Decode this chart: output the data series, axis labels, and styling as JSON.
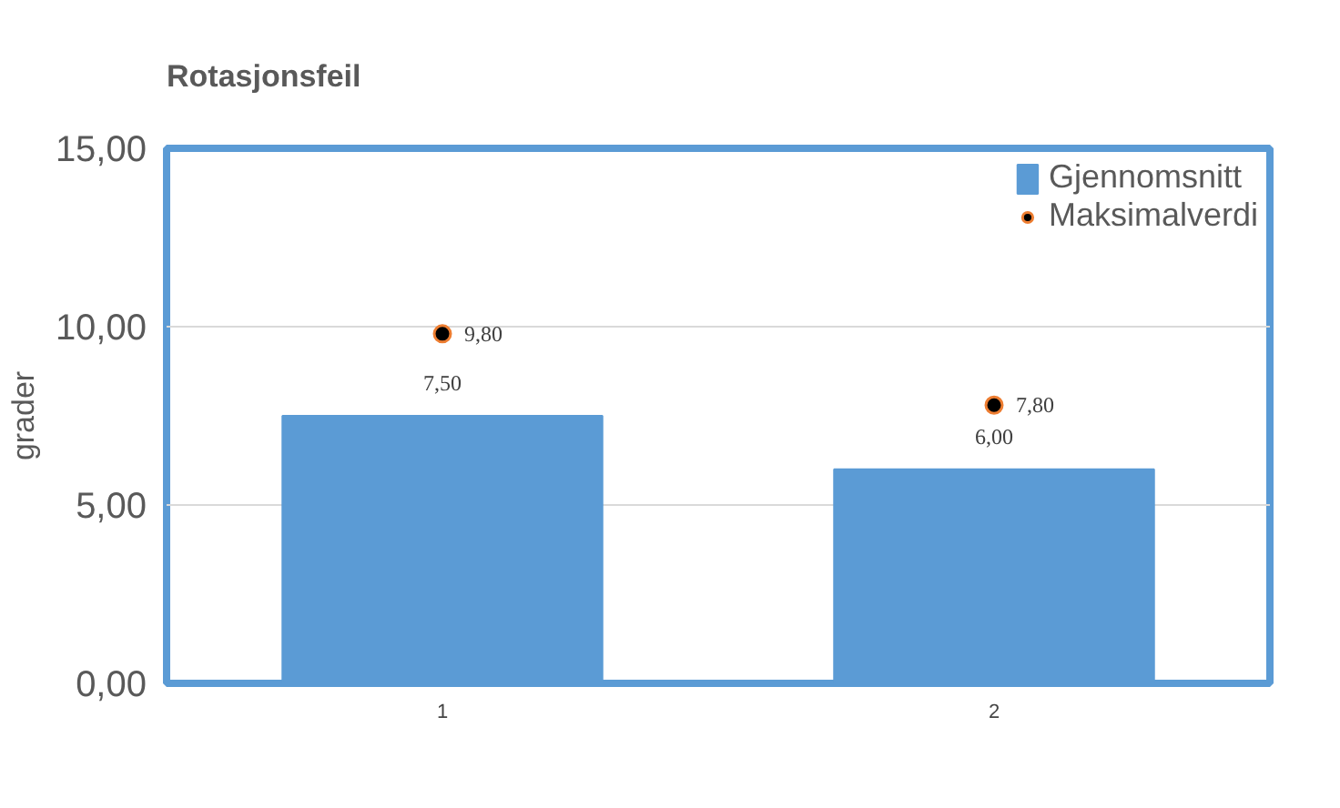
{
  "chart_data": {
    "type": "bar",
    "title": "Rotasjonsfeil",
    "ylabel": "grader",
    "categories": [
      "1",
      "2"
    ],
    "series": [
      {
        "name": "Gjennomsnitt",
        "type": "bar",
        "color": "#5b9bd5",
        "values": [
          7.5,
          6.0
        ],
        "value_labels": [
          "7,50",
          "6,00"
        ]
      },
      {
        "name": "Maksimalverdi",
        "type": "scatter",
        "color": "#000000",
        "values": [
          9.8,
          7.8
        ],
        "value_labels": [
          "9,80",
          "7,80"
        ],
        "marker": "circle"
      }
    ],
    "ylim": [
      0,
      15
    ],
    "yticks": [
      {
        "value": 0,
        "label": "0,00"
      },
      {
        "value": 5,
        "label": "5,00"
      },
      {
        "value": 10,
        "label": "10,00"
      },
      {
        "value": 15,
        "label": "15,00"
      }
    ],
    "grid": "y",
    "legend": "top right"
  }
}
